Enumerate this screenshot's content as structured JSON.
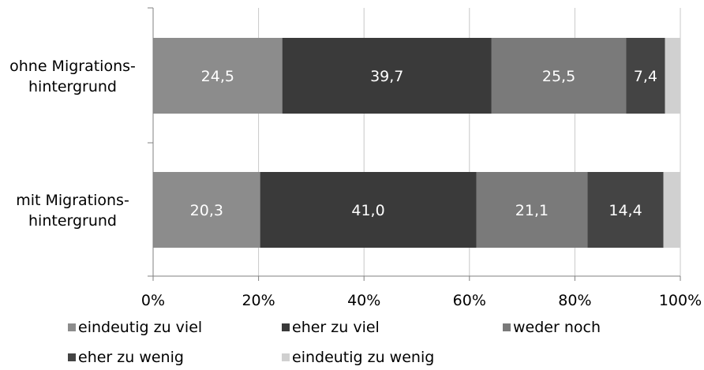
{
  "chart_data": {
    "type": "bar",
    "orientation": "horizontal",
    "stacked": "percent",
    "categories": [
      "ohne Migrationshintergrund",
      "mit Migrationshintergrund"
    ],
    "category_label_lines": [
      [
        "ohne Migrations-",
        "hintergrund"
      ],
      [
        "mit Migrations-",
        "hintergrund"
      ]
    ],
    "series": [
      {
        "name": "eindeutig zu viel",
        "values": [
          24.5,
          20.3
        ],
        "color": "#8c8c8c",
        "label_color": "#ffffff"
      },
      {
        "name": "eher zu viel",
        "values": [
          39.7,
          41.0
        ],
        "color": "#3a3a3a",
        "label_color": "#ffffff"
      },
      {
        "name": "weder noch",
        "values": [
          25.5,
          21.1
        ],
        "color": "#7a7a7a",
        "label_color": "#ffffff"
      },
      {
        "name": "eher zu wenig",
        "values": [
          7.4,
          14.4
        ],
        "color": "#444444",
        "label_color": "#ffffff"
      },
      {
        "name": "eindeutig zu wenig",
        "values": [
          2.9,
          3.2
        ],
        "color": "#d0d0d0",
        "label_color": "#ffffff"
      }
    ],
    "data_labels": [
      [
        "24,5",
        "39,7",
        "25,5",
        "7,4",
        ""
      ],
      [
        "20,3",
        "41,0",
        "21,1",
        "14,4",
        ""
      ]
    ],
    "xlim": [
      0,
      100
    ],
    "xticks": [
      "0%",
      "20%",
      "40%",
      "60%",
      "80%",
      "100%"
    ],
    "grid": true,
    "legend_position": "bottom"
  }
}
